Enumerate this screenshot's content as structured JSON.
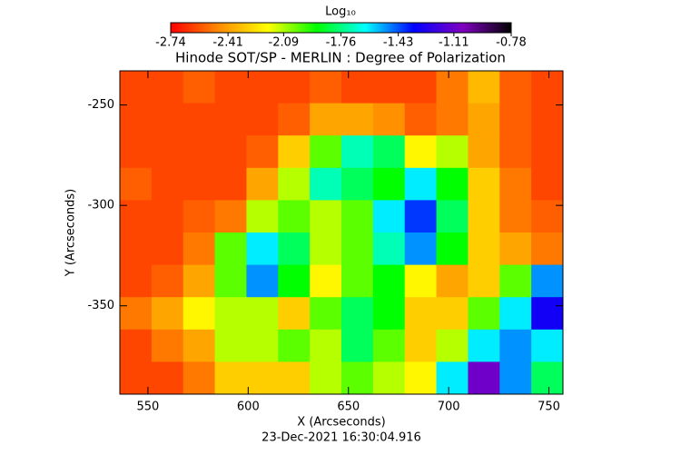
{
  "chart_data": {
    "type": "heatmap",
    "title": "Hinode SOT/SP - MERLIN : Degree of Polarization",
    "xlabel": "X (Arcseconds)",
    "ylabel": "Y (Arcseconds)",
    "footer": "23-Dec-2021 16:30:04.916",
    "colorbar_label": "Log₁₀",
    "colorbar_lim": [
      -2.74,
      -0.78
    ],
    "colorbar_ticks": [
      -2.74,
      -2.41,
      -2.09,
      -1.76,
      -1.43,
      -1.11,
      -0.78
    ],
    "colorscale": [
      "#ff0000",
      "#ff8c00",
      "#ffff00",
      "#00ff00",
      "#00ffff",
      "#0000ff",
      "#8000c0",
      "#000000"
    ],
    "xlim": [
      536,
      757
    ],
    "ylim": [
      -394,
      -233
    ],
    "xticks": [
      550,
      600,
      650,
      700,
      750
    ],
    "yticks": [
      -250,
      -300,
      -350
    ],
    "z": [
      [
        -2.6,
        -2.6,
        -2.55,
        -2.6,
        -2.6,
        -2.6,
        -2.55,
        -2.6,
        -2.6,
        -2.6,
        -2.5,
        -2.35,
        -2.55,
        -2.6
      ],
      [
        -2.6,
        -2.6,
        -2.6,
        -2.6,
        -2.6,
        -2.55,
        -2.4,
        -2.4,
        -2.45,
        -2.55,
        -2.5,
        -2.4,
        -2.55,
        -2.6
      ],
      [
        -2.6,
        -2.6,
        -2.6,
        -2.6,
        -2.55,
        -2.3,
        -2.0,
        -1.7,
        -1.8,
        -2.2,
        -2.1,
        -2.4,
        -2.55,
        -2.6
      ],
      [
        -2.55,
        -2.6,
        -2.6,
        -2.6,
        -2.4,
        -2.1,
        -1.7,
        -1.8,
        -1.9,
        -1.6,
        -1.9,
        -2.3,
        -2.5,
        -2.6
      ],
      [
        -2.6,
        -2.6,
        -2.55,
        -2.5,
        -2.1,
        -2.0,
        -2.1,
        -2.0,
        -1.6,
        -1.4,
        -1.8,
        -2.3,
        -2.5,
        -2.55
      ],
      [
        -2.6,
        -2.6,
        -2.5,
        -2.0,
        -1.6,
        -1.8,
        -2.1,
        -2.0,
        -1.7,
        -1.5,
        -1.9,
        -2.3,
        -2.4,
        -2.5
      ],
      [
        -2.6,
        -2.55,
        -2.4,
        -2.0,
        -1.5,
        -1.9,
        -2.2,
        -2.0,
        -1.9,
        -2.2,
        -2.4,
        -2.3,
        -2.0,
        -1.5
      ],
      [
        -2.5,
        -2.4,
        -2.2,
        -2.1,
        -2.1,
        -2.3,
        -2.0,
        -1.8,
        -1.9,
        -2.3,
        -2.3,
        -2.0,
        -1.6,
        -1.3
      ],
      [
        -2.6,
        -2.5,
        -2.4,
        -2.1,
        -2.1,
        -2.0,
        -2.1,
        -1.8,
        -2.0,
        -2.3,
        -2.1,
        -1.6,
        -1.5,
        -1.6
      ],
      [
        -2.6,
        -2.6,
        -2.5,
        -2.3,
        -2.3,
        -2.3,
        -2.1,
        -2.0,
        -2.1,
        -2.2,
        -1.6,
        -1.1,
        -1.5,
        -1.8
      ]
    ]
  }
}
